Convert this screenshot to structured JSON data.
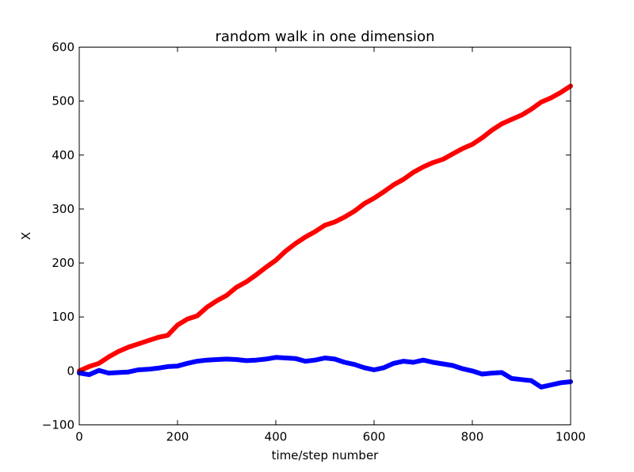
{
  "chart_data": {
    "type": "line",
    "title": "random walk in one dimension",
    "xlabel": "time/step number",
    "ylabel": "X",
    "xlim": [
      0,
      1000
    ],
    "ylim": [
      -100,
      600
    ],
    "xticks": [
      0,
      200,
      400,
      600,
      800,
      1000
    ],
    "xtick_labels": [
      "0",
      "200",
      "400",
      "600",
      "800",
      "1000"
    ],
    "yticks": [
      -100,
      0,
      100,
      200,
      300,
      400,
      500,
      600
    ],
    "ytick_labels": [
      "−100",
      "0",
      "100",
      "200",
      "300",
      "400",
      "500",
      "600"
    ],
    "grid": false,
    "legend": "none",
    "series": [
      {
        "color": "#ff0000",
        "x": [
          0,
          20,
          40,
          60,
          80,
          100,
          120,
          140,
          160,
          180,
          200,
          220,
          240,
          260,
          280,
          300,
          320,
          340,
          360,
          380,
          400,
          420,
          440,
          460,
          480,
          500,
          520,
          540,
          560,
          580,
          600,
          620,
          640,
          660,
          680,
          700,
          720,
          740,
          760,
          780,
          800,
          820,
          840,
          860,
          880,
          900,
          920,
          940,
          960,
          980,
          1000
        ],
        "y": [
          0,
          8,
          14,
          26,
          36,
          44,
          50,
          56,
          62,
          66,
          85,
          96,
          102,
          118,
          130,
          140,
          155,
          165,
          178,
          192,
          205,
          222,
          236,
          248,
          258,
          270,
          276,
          285,
          296,
          310,
          320,
          332,
          345,
          355,
          368,
          378,
          386,
          392,
          402,
          412,
          420,
          432,
          446,
          458,
          466,
          474,
          485,
          498,
          506,
          516,
          528
        ]
      },
      {
        "color": "#0000ff",
        "x": [
          0,
          20,
          40,
          60,
          80,
          100,
          120,
          140,
          160,
          180,
          200,
          220,
          240,
          260,
          280,
          300,
          320,
          340,
          360,
          380,
          400,
          420,
          440,
          460,
          480,
          500,
          520,
          540,
          560,
          580,
          600,
          620,
          640,
          660,
          680,
          700,
          720,
          740,
          760,
          780,
          800,
          820,
          840,
          860,
          880,
          900,
          920,
          940,
          960,
          980,
          1000
        ],
        "y": [
          -4,
          -7,
          1,
          -4,
          -3,
          -2,
          2,
          3,
          5,
          8,
          9,
          14,
          18,
          20,
          21,
          22,
          21,
          19,
          20,
          22,
          25,
          24,
          23,
          18,
          20,
          24,
          22,
          16,
          12,
          6,
          2,
          6,
          14,
          18,
          16,
          20,
          16,
          13,
          10,
          4,
          0,
          -6,
          -4,
          -3,
          -14,
          -16,
          -18,
          -30,
          -26,
          -22,
          -20
        ]
      }
    ]
  }
}
